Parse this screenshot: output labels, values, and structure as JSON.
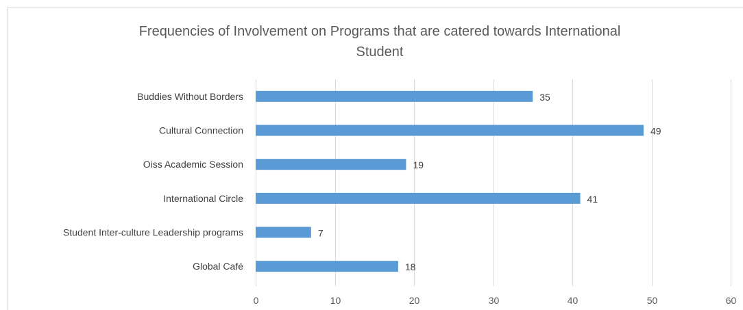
{
  "chart_data": {
    "type": "bar",
    "orientation": "horizontal",
    "title_lines": [
      "Frequencies of Involvement on Programs that are catered towards International",
      "Student"
    ],
    "categories": [
      "Buddies Without Borders",
      "Cultural Connection",
      "Oiss Academic Session",
      "International Circle",
      "Student Inter-culture Leadership programs",
      "Global Café"
    ],
    "values": [
      35,
      49,
      19,
      41,
      7,
      18
    ],
    "xlim": [
      0,
      60
    ],
    "xticks": [
      0,
      10,
      20,
      30,
      40,
      50,
      60
    ],
    "grid": true,
    "data_labels": true,
    "bar_color": "#5b9bd5",
    "grid_color": "#d9d9d9"
  }
}
